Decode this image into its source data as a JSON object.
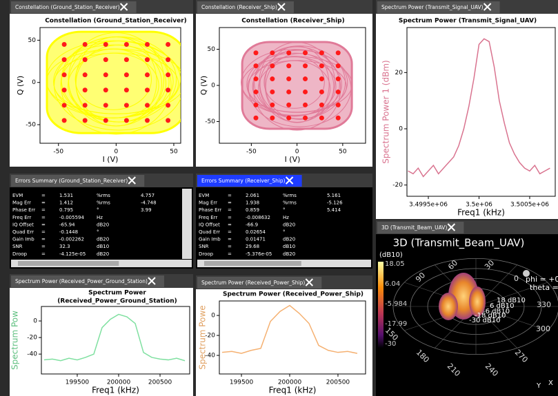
{
  "panels": {
    "constellation_gsr": {
      "tab": "Constellation (Ground_Station_Receiver)",
      "title": "Constellation (Ground_Station_Receiver)",
      "xlabel": "I (V)",
      "ylabel": "Q (V)",
      "xlim": [
        -66,
        56
      ],
      "ylim": [
        -72,
        65
      ],
      "xticks": [
        -50,
        0,
        50
      ],
      "yticks": [
        -50,
        0,
        50
      ],
      "levels": [
        -45,
        -27,
        -9,
        9,
        27,
        45
      ],
      "color": "#ffff00",
      "dot_color": "#ff1a1a"
    },
    "constellation_rs": {
      "tab": "Constellation (Receiver_Ship)",
      "title": "Constellation (Receiver_Ship)",
      "xlabel": "I (V)",
      "ylabel": "Q (V)",
      "xlim": [
        -85,
        75
      ],
      "ylim": [
        -80,
        80
      ],
      "xticks": [
        -50,
        0,
        50
      ],
      "yticks": [
        -50,
        0,
        50
      ],
      "levels": [
        -45,
        -27,
        -9,
        9,
        27,
        45
      ],
      "color": "#e07a98",
      "dot_color": "#ff1a1a"
    },
    "spectrum_uav": {
      "tab": "Spectrum Power (Transmit_Signal_UAV)",
      "title": "Spectrum Power (Transmit_Signal_UAV)",
      "xlabel": "Freq1 (kHz)",
      "ylabel": "Spectrum Power 1 (dBm)",
      "xlim": [
        3499289,
        3500752
      ],
      "ylim": [
        -24,
        36
      ],
      "xticks": [
        {
          "value": 3499500,
          "label": "3.4995e+06"
        },
        {
          "value": 3500000,
          "label": "3.5e+06"
        },
        {
          "value": 3500500,
          "label": "3.5005e+06"
        }
      ],
      "yticks": [
        -20,
        0,
        20
      ],
      "color": "#d9738f",
      "x": [
        3499300,
        3499350,
        3499400,
        3499450,
        3499500,
        3499550,
        3499600,
        3499650,
        3499700,
        3499750,
        3499800,
        3499850,
        3499900,
        3499950,
        3500000,
        3500050,
        3500100,
        3500150,
        3500200,
        3500250,
        3500300,
        3500350,
        3500400,
        3500450,
        3500500,
        3500550,
        3500600,
        3500650,
        3500700
      ],
      "values": [
        -15,
        -16,
        -14,
        -17,
        -15,
        -13,
        -16,
        -14,
        -12,
        -10,
        -6,
        0,
        8,
        18,
        30,
        32,
        31,
        22,
        10,
        2,
        -5,
        -9,
        -12,
        -14,
        -15,
        -13,
        -16,
        -15,
        -14
      ]
    },
    "errors_gsr": {
      "tab": "Errors Summary (Ground_Station_Receiver)",
      "rows": [
        [
          "EVM",
          "=",
          "1.531",
          "%rms",
          "4.757"
        ],
        [
          "Mag Err",
          "=",
          "1.412",
          "%rms",
          "-4.748"
        ],
        [
          "Phase Err",
          "=",
          "0.795",
          "°",
          "3.99"
        ],
        [
          "Freq Err",
          "=",
          "-0.005594",
          "Hz"
        ],
        [
          "IQ Offset",
          "=",
          "-65.94",
          "dB20"
        ],
        [
          "Quad Err",
          "=",
          "-0.1448",
          "°"
        ],
        [
          "Gain Imb",
          "=",
          "-0.002262",
          "dB20"
        ],
        [
          "SNR",
          "=",
          "32.3",
          "dB10"
        ],
        [
          "Droop",
          "=",
          "-4.125e-05",
          "dB20"
        ]
      ]
    },
    "errors_rs": {
      "tab": "Errors Summary (Receiver_Ship)",
      "rows": [
        [
          "EVM",
          "=",
          "2.061",
          "%rms",
          "5.161"
        ],
        [
          "Mag Err",
          "=",
          "1.938",
          "%rms",
          "-5.126"
        ],
        [
          "Phase Err",
          "=",
          "0.859",
          "°",
          "5.414"
        ],
        [
          "Freq Err",
          "=",
          "-0.008632",
          "Hz"
        ],
        [
          "IQ Offset",
          "=",
          "-66.9",
          "dB20"
        ],
        [
          "Quad Err",
          "=",
          "0.02654",
          "°"
        ],
        [
          "Gain Imb",
          "=",
          "0.01471",
          "dB20"
        ],
        [
          "SNR",
          "=",
          "29.68",
          "dB10"
        ],
        [
          "Droop",
          "=",
          "-5.376e-05",
          "dB20"
        ]
      ]
    },
    "beam_3d": {
      "tab": "3D (Transmit_Beam_UAV)",
      "title": "3D (Transmit_Beam_UAV)",
      "unit": "(dB10)",
      "colorbar": [
        "18.05",
        "6.04",
        "-5.984",
        "-17.99",
        "-30"
      ],
      "angles": [
        "60",
        "30",
        "90",
        "0",
        "330",
        "300",
        "270",
        "240",
        "210",
        "180",
        "150"
      ],
      "rings": [
        "18 dB10",
        "6 dB10",
        "-6 dB10",
        "-18 dB10",
        "-30 dB10"
      ],
      "phi": "phi = +0",
      "theta": "theta =",
      "axis_x": "X",
      "axis_y": "Y"
    },
    "spectrum_gs": {
      "tab": "Spectrum Power (Received_Power_Ground_Station)",
      "title": "Spectrum Power",
      "subtitle": "(Received_Power_Ground_Station)",
      "xlabel": "Freq1 (kHz)",
      "ylabel": "Spectrum Pow",
      "xlim": [
        199067,
        200858
      ],
      "ylim": [
        -64,
        17.5
      ],
      "xticks": [
        199500,
        200000,
        200500
      ],
      "yticks": [
        0,
        -20,
        -40
      ],
      "color": "#7fe0a0",
      "x": [
        199100,
        199200,
        199300,
        199400,
        199500,
        199600,
        199700,
        199800,
        199900,
        200000,
        200100,
        200200,
        200300,
        200400,
        200500,
        200600,
        200700,
        200800
      ],
      "values": [
        -47,
        -46,
        -48,
        -45,
        -47,
        -44,
        -40,
        -8,
        2,
        8,
        5,
        -3,
        -38,
        -44,
        -46,
        -47,
        -45,
        -48
      ]
    },
    "spectrum_ship": {
      "tab": "Spectrum Power (Received_Power_Ship)",
      "title": "Spectrum Power (Received_Power_Ship)",
      "xlabel": "Freq1 (kHz)",
      "ylabel": "Spectrum Powe",
      "xlim": [
        199271,
        200786
      ],
      "ylim": [
        -58.6,
        14.5
      ],
      "xticks": [
        199500,
        200000,
        200500
      ],
      "yticks": [
        0,
        -20,
        -40
      ],
      "color": "#f5b070",
      "x": [
        199300,
        199400,
        199500,
        199600,
        199700,
        199800,
        199900,
        200000,
        200100,
        200200,
        200300,
        200400,
        200500,
        200600,
        200700
      ],
      "values": [
        -37,
        -36,
        -38,
        -35,
        -33,
        -6,
        4,
        10,
        2,
        -8,
        -30,
        -35,
        -37,
        -36,
        -38
      ]
    }
  }
}
